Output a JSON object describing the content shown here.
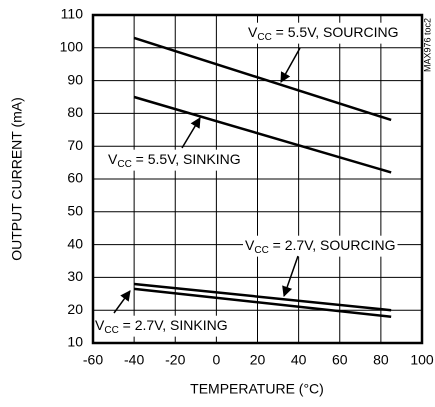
{
  "chart_data": {
    "type": "line",
    "x_label": "TEMPERATURE (°C)",
    "y_label": "OUTPUT CURRENT (mA)",
    "side_label": "MAX976 toc2",
    "x": [
      -40,
      85
    ],
    "series": [
      {
        "color": "#000000",
        "values": [
          103,
          78
        ]
      },
      {
        "color": "#000000",
        "values": [
          85,
          62
        ]
      },
      {
        "color": "#000000",
        "values": [
          28,
          20
        ]
      },
      {
        "color": "#000000",
        "values": [
          26.5,
          18
        ]
      }
    ],
    "annotations": [
      {
        "prefix": "V",
        "sub": "CC",
        "rest": " = 5.5V, SOURCING"
      },
      {
        "prefix": "V",
        "sub": "CC",
        "rest": " = 5.5V, SINKING"
      },
      {
        "prefix": "V",
        "sub": "CC",
        "rest": " = 2.7V, SOURCING"
      },
      {
        "prefix": "V",
        "sub": "CC",
        "rest": " = 2.7V, SINKING"
      }
    ],
    "xlim": [
      -60,
      100
    ],
    "xticks": [
      -60,
      -40,
      -20,
      0,
      20,
      40,
      60,
      80,
      100
    ],
    "ylim": [
      10,
      110
    ],
    "yticks": [
      10,
      20,
      30,
      40,
      50,
      60,
      70,
      80,
      90,
      100,
      110
    ],
    "grid": true
  }
}
